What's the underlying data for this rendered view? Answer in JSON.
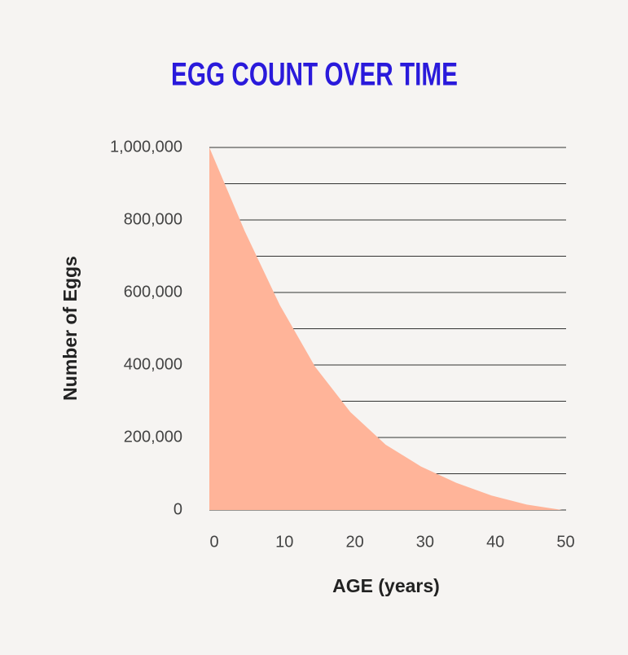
{
  "chart_data": {
    "type": "area",
    "title": "EGG COUNT OVER TIME",
    "y_label": "Number of Eggs",
    "x_label": "AGE (years)",
    "x": [
      0,
      5,
      10,
      15,
      20,
      25,
      30,
      35,
      40,
      45,
      50
    ],
    "values": [
      1000000,
      770000,
      565000,
      395000,
      270000,
      180000,
      120000,
      75000,
      40000,
      15000,
      0
    ],
    "color": "#ffb499",
    "xlim": [
      0,
      50
    ],
    "xticks": [
      0,
      10,
      20,
      30,
      40,
      50
    ],
    "ylim": [
      0,
      1000000
    ],
    "yticks": [
      0,
      {
        "value": 200000,
        "label": "200,000"
      },
      {
        "value": 400000,
        "label": "400,000"
      },
      {
        "value": 600000,
        "label": "600,000"
      },
      {
        "value": 800000,
        "label": "800,000"
      },
      {
        "value": 1000000,
        "label": "1,000,000"
      }
    ],
    "yminor": [
      100000,
      300000,
      500000,
      700000,
      900000
    ],
    "grid": true
  }
}
